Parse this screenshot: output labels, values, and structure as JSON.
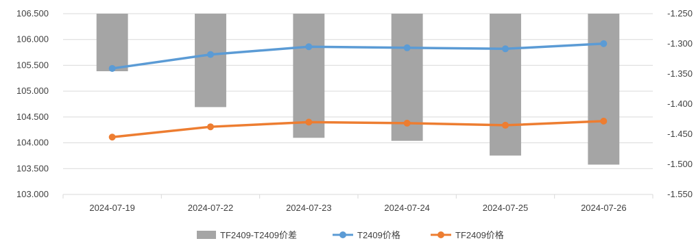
{
  "chart_data": {
    "type": "bar+line",
    "categories": [
      "2024-07-19",
      "2024-07-22",
      "2024-07-23",
      "2024-07-24",
      "2024-07-25",
      "2024-07-26"
    ],
    "left_axis": {
      "min": 103.0,
      "max": 106.5,
      "step": 0.5,
      "decimals": 3,
      "ticks": [
        "106.500",
        "106.000",
        "105.500",
        "105.000",
        "104.500",
        "104.000",
        "103.500",
        "103.000"
      ]
    },
    "right_axis": {
      "min": -1.55,
      "max": -1.25,
      "step": 0.05,
      "decimals": 3,
      "ticks": [
        "-1.250",
        "-1.300",
        "-1.350",
        "-1.400",
        "-1.450",
        "-1.500",
        "-1.550"
      ]
    },
    "grid": true,
    "legend_position": "bottom",
    "series": [
      {
        "name": "TF2409-T2409价差",
        "kind": "bar",
        "axis": "right",
        "color": "#a5a5a5",
        "values": [
          -1.3455,
          -1.405,
          -1.456,
          -1.461,
          -1.4855,
          -1.5005
        ]
      },
      {
        "name": "T2409价格",
        "kind": "line",
        "axis": "left",
        "color": "#5b9bd5",
        "values": [
          105.44,
          105.71,
          105.86,
          105.84,
          105.82,
          105.92
        ]
      },
      {
        "name": "TF2409价格",
        "kind": "line",
        "axis": "left",
        "color": "#ed7d31",
        "values": [
          104.11,
          104.31,
          104.4,
          104.38,
          104.34,
          104.42
        ]
      }
    ]
  }
}
